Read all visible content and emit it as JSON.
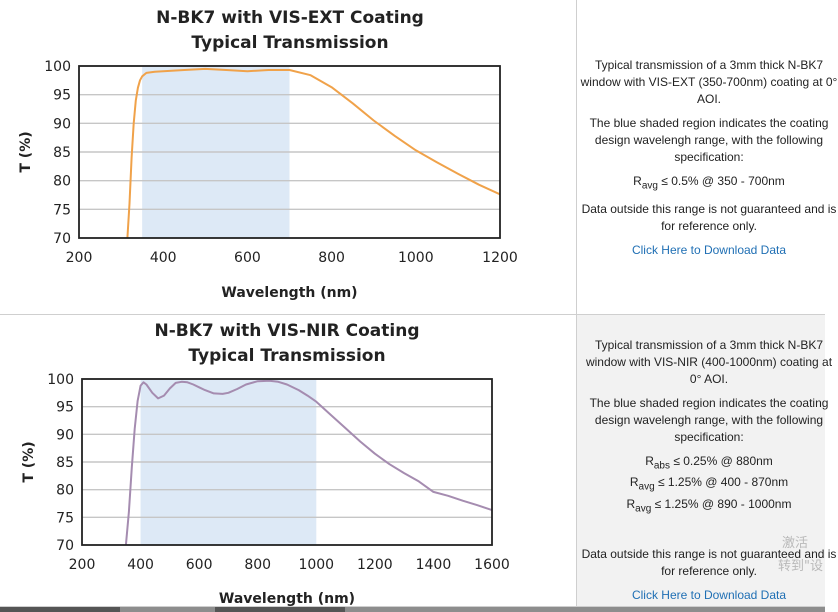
{
  "panels": [
    {
      "chart_data": {
        "type": "line",
        "title": "N-BK7 with VIS-EXT Coating",
        "subtitle": "Typical Transmission",
        "xlabel": "Wavelength (nm)",
        "ylabel": "T (%)",
        "xlim": [
          200,
          1200
        ],
        "ylim": [
          70,
          100
        ],
        "x_ticks": [
          200,
          400,
          600,
          800,
          1000,
          1200
        ],
        "y_ticks": [
          70,
          75,
          80,
          85,
          90,
          95,
          100
        ],
        "grid": "horizontal",
        "shaded_region": [
          350,
          700
        ],
        "series": [
          {
            "x": [
              315,
              320,
              325,
              330,
              335,
              340,
              345,
              350,
              360,
              380,
              400,
              450,
              500,
              550,
              600,
              650,
              700,
              750,
              800,
              850,
              900,
              950,
              1000,
              1050,
              1100,
              1150,
              1200
            ],
            "y": [
              70,
              76,
              84,
              90,
              94,
              96.2,
              97.5,
              98.2,
              98.8,
              99.0,
              99.1,
              99.3,
              99.5,
              99.3,
              99.1,
              99.3,
              99.3,
              98.4,
              96.3,
              93.5,
              90.5,
              87.8,
              85.3,
              83.2,
              81.2,
              79.3,
              77.6
            ]
          }
        ]
      },
      "colors": {
        "line": "#f0a24a",
        "shade": "#dde9f6",
        "grid": "#c6c6c6",
        "frame": "#222222"
      },
      "description": {
        "p1": "Typical transmission of a 3mm thick N-BK7 window with VIS-EXT (350-700nm) coating at 0° AOI.",
        "p2": "The blue shaded region indicates the coating design wavelengh range, with the following specification:",
        "spec": [
          {
            "sym": "R",
            "sub": "avg",
            "rest": " ≤ 0.5% @ 350 - 700nm"
          }
        ],
        "p3": "Data outside this range is not guaranteed and is for reference only.",
        "link": "Click Here to Download Data"
      }
    },
    {
      "chart_data": {
        "type": "line",
        "title": "N-BK7 with VIS-NIR Coating",
        "subtitle": "Typical Transmission",
        "xlabel": "Wavelength (nm)",
        "ylabel": "T (%)",
        "xlim": [
          200,
          1600
        ],
        "ylim": [
          70,
          100
        ],
        "x_ticks": [
          200,
          400,
          600,
          800,
          1000,
          1200,
          1400,
          1600
        ],
        "y_ticks": [
          70,
          75,
          80,
          85,
          90,
          95,
          100
        ],
        "grid": "horizontal",
        "shaded_region": [
          400,
          1000
        ],
        "series": [
          {
            "x": [
              350,
              360,
              370,
              380,
              390,
              400,
              410,
              420,
              440,
              460,
              480,
              500,
              520,
              540,
              560,
              580,
              600,
              620,
              650,
              680,
              700,
              730,
              760,
              800,
              840,
              870,
              900,
              940,
              970,
              1000,
              1050,
              1100,
              1150,
              1200,
              1250,
              1300,
              1350,
              1400,
              1450,
              1500,
              1550,
              1600
            ],
            "y": [
              70,
              76,
              84,
              91,
              96,
              98.8,
              99.4,
              99.0,
              97.5,
              96.5,
              97.0,
              98.3,
              99.3,
              99.5,
              99.4,
              99.0,
              98.5,
              98.0,
              97.4,
              97.3,
              97.5,
              98.2,
              99.0,
              99.6,
              99.7,
              99.5,
              99.0,
              98.0,
              97.0,
              95.9,
              93.5,
              91.1,
              88.7,
              86.5,
              84.6,
              83.0,
              81.5,
              79.6,
              78.9,
              78.0,
              77.2,
              76.3
            ]
          }
        ]
      },
      "colors": {
        "line": "#a58cb0",
        "shade": "#dde9f6",
        "grid": "#c6c6c6",
        "frame": "#222222"
      },
      "description": {
        "p1": "Typical transmission of a 3mm thick N-BK7 window with VIS-NIR (400-1000nm) coating at 0° AOI.",
        "p2": "The blue shaded region indicates the coating design wavelengh range, with the following specification:",
        "spec": [
          {
            "sym": "R",
            "sub": "abs",
            "rest": " ≤ 0.25% @ 880nm"
          },
          {
            "sym": "R",
            "sub": "avg",
            "rest": " ≤ 1.25% @ 400 - 870nm"
          },
          {
            "sym": "R",
            "sub": "avg",
            "rest": " ≤ 1.25% @ 890 - 1000nm"
          }
        ],
        "p3": "Data outside this range is not guaranteed and is for reference only.",
        "link": "Click Here to Download Data"
      }
    }
  ],
  "watermark": {
    "line1": "激活",
    "line2": "转到\"设"
  }
}
